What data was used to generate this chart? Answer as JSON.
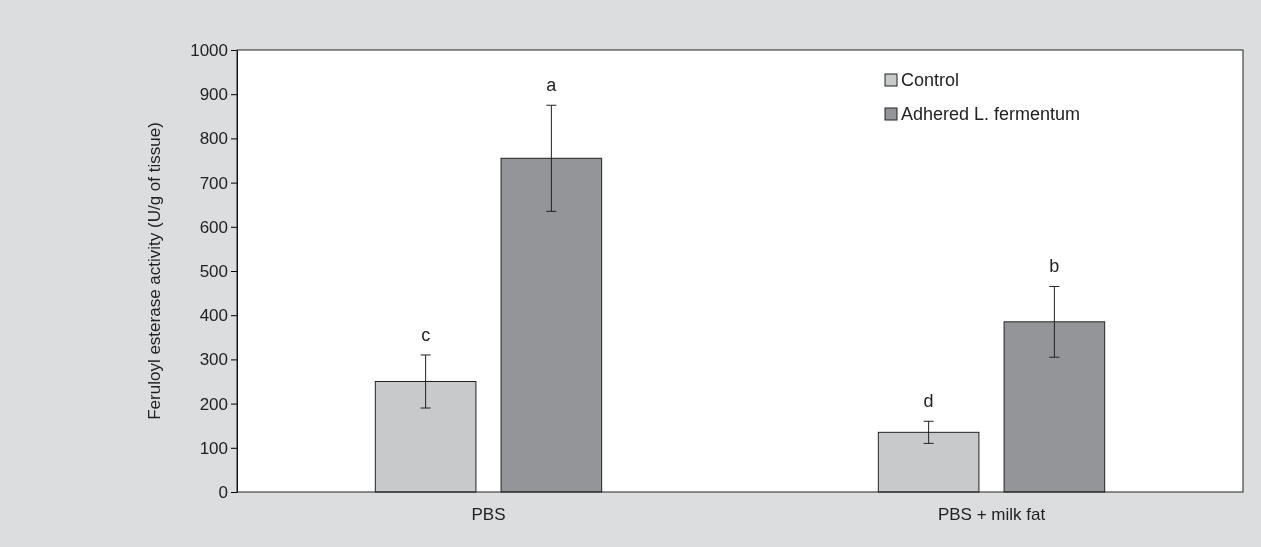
{
  "chart_data": {
    "type": "bar",
    "ylabel": "Feruloyl esterase activity (U/g of tissue)",
    "categories": [
      "PBS",
      "PBS + milk fat"
    ],
    "series": [
      {
        "name": "Control",
        "color": "#c8c9cb",
        "values": [
          250,
          135
        ],
        "errors": [
          60,
          25
        ]
      },
      {
        "name": "Adhered L. fermentum",
        "color": "#939598",
        "values": [
          755,
          385
        ],
        "errors": [
          120,
          80
        ]
      }
    ],
    "ylim": [
      0,
      1000
    ],
    "yticks": [
      0,
      100,
      200,
      300,
      400,
      500,
      600,
      700,
      800,
      900,
      1000
    ],
    "grid": false,
    "legend": "top right",
    "annotations": [
      "c",
      "a",
      "d",
      "b"
    ]
  }
}
